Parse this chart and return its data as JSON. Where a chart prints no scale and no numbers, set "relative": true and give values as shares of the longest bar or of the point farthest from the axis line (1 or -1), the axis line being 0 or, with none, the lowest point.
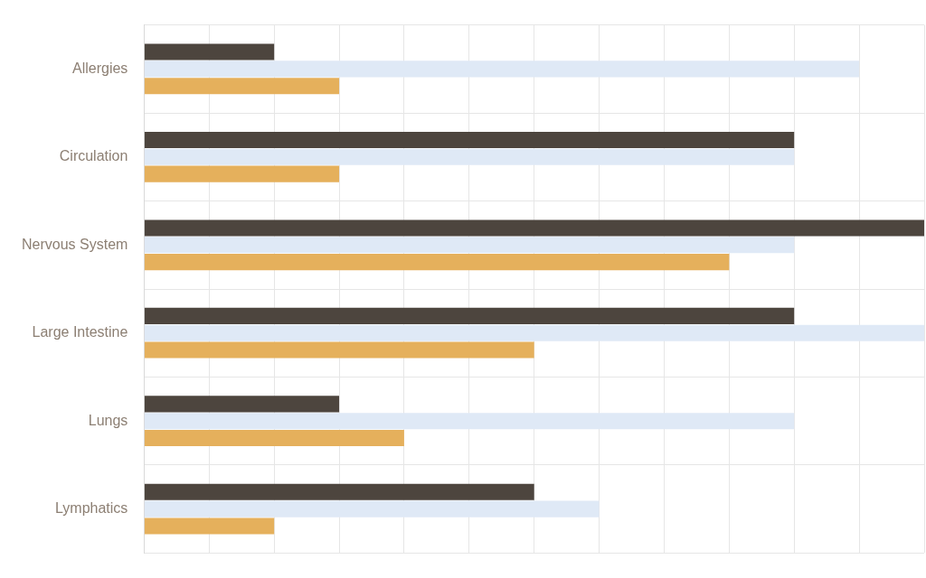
{
  "chart_data": {
    "type": "bar",
    "orientation": "horizontal",
    "relative": true,
    "grid": true,
    "legend": false,
    "categories": [
      "Allergies",
      "Circulation",
      "Nervous System",
      "Large Intestine",
      "Lungs",
      "Lymphatics"
    ],
    "series": [
      {
        "color": "#4d453e",
        "values": [
          0.1667,
          0.8333,
          1,
          0.8333,
          0.25,
          0.5
        ]
      },
      {
        "color": "#dfe9f6",
        "values": [
          0.9167,
          0.8333,
          0.8333,
          1,
          0.8333,
          0.5833
        ]
      },
      {
        "color": "#e5b05c",
        "values": [
          0.25,
          0.25,
          0.75,
          0.5,
          0.3333,
          0.1667
        ]
      }
    ]
  }
}
